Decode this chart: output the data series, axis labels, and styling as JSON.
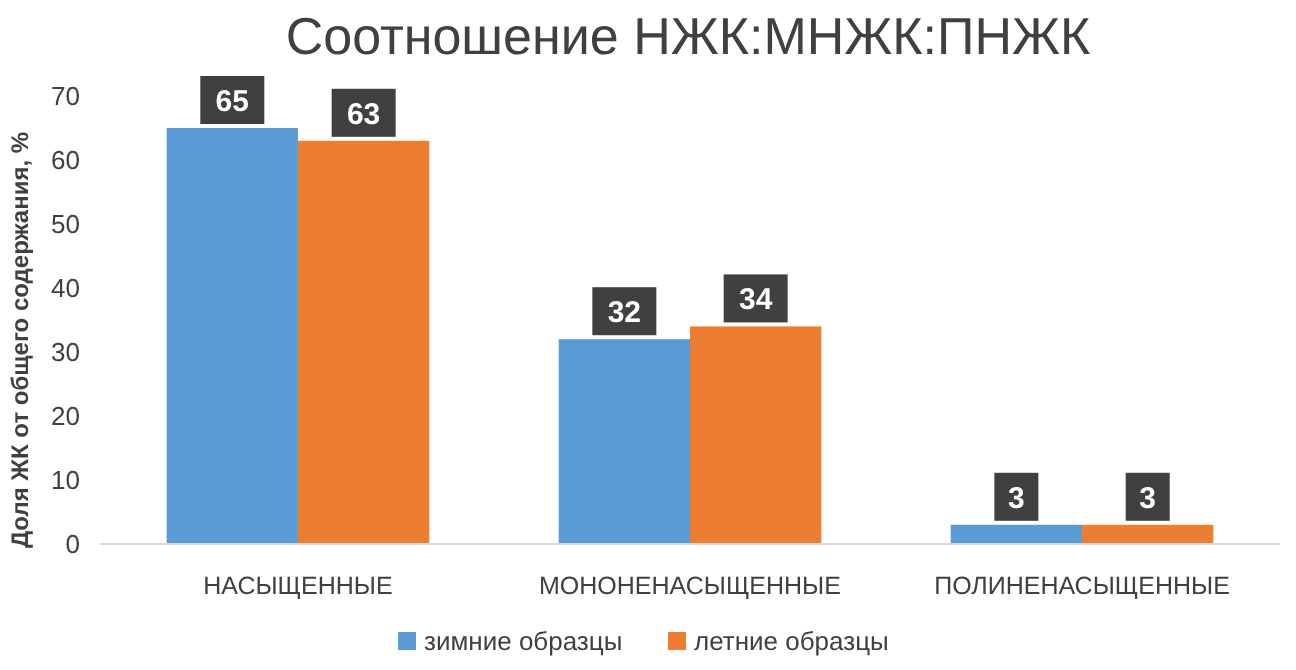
{
  "chart_data": {
    "type": "bar",
    "title": "Соотношение НЖК:МНЖК:ПНЖК",
    "ylabel": "Доля ЖК от общего содержания, %",
    "categories": [
      "НАСЫЩЕННЫЕ",
      "МОНОНЕНАСЫЩЕННЫЕ",
      "ПОЛИНЕНАСЫЩЕННЫЕ"
    ],
    "series": [
      {
        "name": "зимние образцы",
        "color": "#5b9bd5",
        "values": [
          65,
          32,
          3
        ]
      },
      {
        "name": "летние образцы",
        "color": "#ed7d31",
        "values": [
          63,
          34,
          3
        ]
      }
    ],
    "ylim": [
      0,
      70
    ],
    "yticks": [
      0,
      10,
      20,
      30,
      40,
      50,
      60,
      70
    ],
    "grid": false,
    "legend": "bottom",
    "data_labels": true
  }
}
